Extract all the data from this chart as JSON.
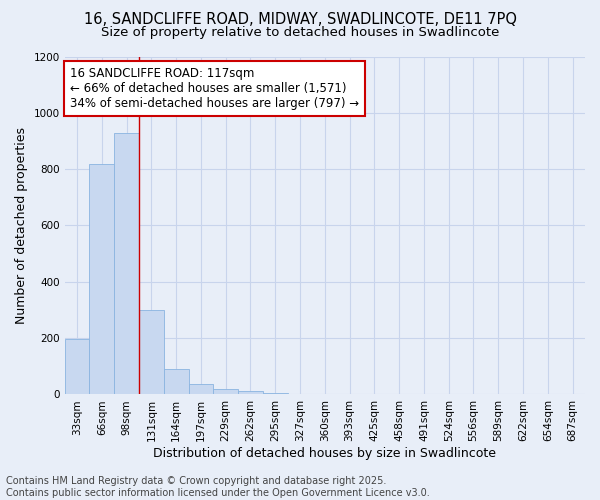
{
  "title_line1": "16, SANDCLIFFE ROAD, MIDWAY, SWADLINCOTE, DE11 7PQ",
  "title_line2": "Size of property relative to detached houses in Swadlincote",
  "xlabel": "Distribution of detached houses by size in Swadlincote",
  "ylabel": "Number of detached properties",
  "categories": [
    "33sqm",
    "66sqm",
    "98sqm",
    "131sqm",
    "164sqm",
    "197sqm",
    "229sqm",
    "262sqm",
    "295sqm",
    "327sqm",
    "360sqm",
    "393sqm",
    "425sqm",
    "458sqm",
    "491sqm",
    "524sqm",
    "556sqm",
    "589sqm",
    "622sqm",
    "654sqm",
    "687sqm"
  ],
  "values": [
    197,
    820,
    930,
    300,
    90,
    37,
    20,
    12,
    5,
    0,
    0,
    0,
    0,
    0,
    0,
    0,
    0,
    0,
    0,
    0,
    0
  ],
  "bar_color": "#c8d8f0",
  "bar_edge_color": "#8ab4e0",
  "annotation_title": "16 SANDCLIFFE ROAD: 117sqm",
  "annotation_line2": "← 66% of detached houses are smaller (1,571)",
  "annotation_line3": "34% of semi-detached houses are larger (797) →",
  "annotation_box_facecolor": "#ffffff",
  "annotation_box_edgecolor": "#cc0000",
  "vline_color": "#cc0000",
  "vline_x": 2.5,
  "ylim": [
    0,
    1200
  ],
  "yticks": [
    0,
    200,
    400,
    600,
    800,
    1000,
    1200
  ],
  "grid_color": "#c8d4ec",
  "background_color": "#e8eef8",
  "footer_line1": "Contains HM Land Registry data © Crown copyright and database right 2025.",
  "footer_line2": "Contains public sector information licensed under the Open Government Licence v3.0.",
  "title_fontsize": 10.5,
  "subtitle_fontsize": 9.5,
  "axis_label_fontsize": 9,
  "tick_fontsize": 7.5,
  "annotation_fontsize": 8.5,
  "footer_fontsize": 7
}
